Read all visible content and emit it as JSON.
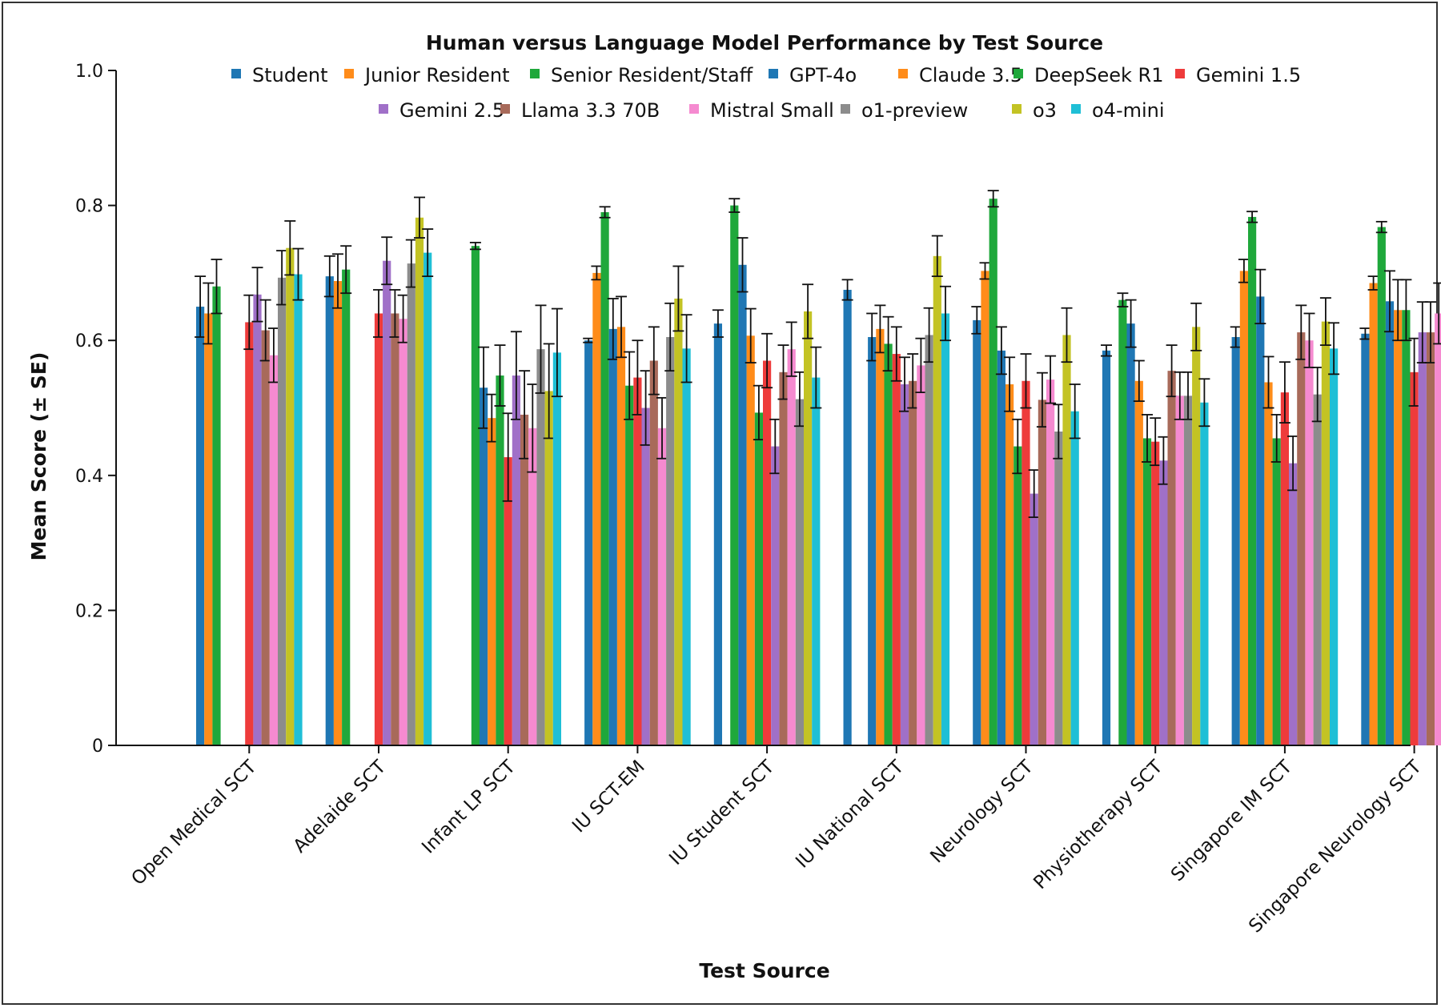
{
  "chart_data": {
    "type": "bar",
    "title": "Human versus Language Model Performance by Test Source",
    "xlabel": "Test Source",
    "ylabel": "Mean Score (± SE)",
    "ylim": [
      0,
      1.0
    ],
    "yticks": [
      0,
      0.2,
      0.4,
      0.6,
      0.8,
      1.0
    ],
    "ytick_labels": [
      "0",
      "0.2",
      "0.4",
      "0.6",
      "0.8",
      "1.0"
    ],
    "grid": false,
    "legend_position": "top",
    "categories": [
      "Open Medical SCT",
      "Adelaide SCT",
      "Infant LP SCT",
      "IU SCT-EM",
      "IU Student SCT",
      "IU National SCT",
      "Neurology SCT",
      "Physiotherapy SCT",
      "Singapore IM SCT",
      "Singapore Neurology SCT"
    ],
    "series": [
      {
        "name": "Student",
        "color": "#1f77b4",
        "values": [
          0.65,
          0.695,
          null,
          0.6,
          0.625,
          0.675,
          0.63,
          0.585,
          0.605,
          0.61
        ],
        "errors": [
          0.045,
          0.03,
          null,
          0.003,
          0.02,
          0.015,
          0.02,
          0.008,
          0.015,
          0.008
        ]
      },
      {
        "name": "Junior Resident",
        "color": "#ff8c1a",
        "values": [
          0.64,
          0.688,
          null,
          0.7,
          null,
          null,
          0.703,
          null,
          0.703,
          0.685
        ],
        "errors": [
          0.045,
          0.04,
          null,
          0.01,
          null,
          null,
          0.012,
          null,
          0.017,
          0.01
        ]
      },
      {
        "name": "Senior Resident/Staff",
        "color": "#1fa83b",
        "values": [
          0.68,
          0.705,
          0.74,
          0.79,
          0.8,
          null,
          0.81,
          0.66,
          0.783,
          0.768
        ],
        "errors": [
          0.04,
          0.035,
          0.005,
          0.008,
          0.01,
          null,
          0.012,
          0.01,
          0.008,
          0.008
        ]
      },
      {
        "name": "GPT-4o",
        "color": "#1f77b4",
        "values": [
          null,
          null,
          0.53,
          0.617,
          0.712,
          0.605,
          0.585,
          0.625,
          0.665,
          0.658
        ],
        "errors": [
          null,
          null,
          0.06,
          0.045,
          0.04,
          0.035,
          0.035,
          0.035,
          0.04,
          0.045
        ]
      },
      {
        "name": "Claude 3.5",
        "color": "#ff8c1a",
        "values": [
          null,
          null,
          0.485,
          0.62,
          0.607,
          0.617,
          0.535,
          0.54,
          0.538,
          0.645
        ],
        "errors": [
          null,
          null,
          0.035,
          0.045,
          0.04,
          0.035,
          0.04,
          0.03,
          0.038,
          0.045
        ]
      },
      {
        "name": "DeepSeek R1",
        "color": "#1fa83b",
        "values": [
          null,
          null,
          0.548,
          0.533,
          0.493,
          0.595,
          0.443,
          0.455,
          0.455,
          0.645
        ],
        "errors": [
          null,
          null,
          0.045,
          0.05,
          0.04,
          0.04,
          0.04,
          0.035,
          0.035,
          0.045
        ]
      },
      {
        "name": "Gemini 1.5",
        "color": "#ee3b3b",
        "values": [
          0.627,
          0.64,
          0.427,
          0.545,
          0.57,
          0.58,
          0.54,
          0.45,
          0.523,
          0.553
        ],
        "errors": [
          0.04,
          0.035,
          0.065,
          0.055,
          0.04,
          0.04,
          0.04,
          0.035,
          0.045,
          0.05
        ]
      },
      {
        "name": "Gemini 2.5",
        "color": "#a070c8",
        "values": [
          0.668,
          0.718,
          0.548,
          0.5,
          0.443,
          0.535,
          0.373,
          0.422,
          0.418,
          0.612
        ],
        "errors": [
          0.04,
          0.035,
          0.065,
          0.055,
          0.04,
          0.04,
          0.035,
          0.035,
          0.04,
          0.045
        ]
      },
      {
        "name": "Llama 3.3 70B",
        "color": "#a86a5a",
        "values": [
          0.615,
          0.64,
          0.49,
          0.57,
          0.553,
          0.54,
          0.512,
          0.555,
          0.612,
          0.612
        ],
        "errors": [
          0.045,
          0.035,
          0.065,
          0.05,
          0.04,
          0.04,
          0.04,
          0.038,
          0.04,
          0.045
        ]
      },
      {
        "name": "Mistral Small",
        "color": "#f58ad0",
        "values": [
          0.578,
          0.632,
          0.47,
          0.47,
          0.587,
          0.563,
          0.542,
          0.518,
          0.6,
          0.64
        ],
        "errors": [
          0.04,
          0.035,
          0.065,
          0.045,
          0.04,
          0.04,
          0.035,
          0.035,
          0.04,
          0.045
        ]
      },
      {
        "name": "o1-preview",
        "color": "#8c8c8c",
        "values": [
          0.693,
          0.714,
          0.587,
          0.605,
          0.513,
          0.608,
          0.465,
          0.518,
          0.52,
          0.602
        ],
        "errors": [
          0.04,
          0.035,
          0.065,
          0.05,
          0.04,
          0.04,
          0.04,
          0.035,
          0.04,
          0.045
        ]
      },
      {
        "name": "o3",
        "color": "#c3c324",
        "values": [
          0.737,
          0.782,
          0.525,
          0.662,
          0.643,
          0.725,
          0.608,
          0.62,
          0.628,
          0.768
        ],
        "errors": [
          0.04,
          0.03,
          0.07,
          0.048,
          0.04,
          0.03,
          0.04,
          0.035,
          0.035,
          0.04
        ]
      },
      {
        "name": "o4-mini",
        "color": "#1fbfd6",
        "values": [
          0.698,
          0.73,
          0.582,
          0.588,
          0.545,
          0.64,
          0.495,
          0.508,
          0.588,
          0.643
        ],
        "errors": [
          0.038,
          0.035,
          0.065,
          0.05,
          0.045,
          0.04,
          0.04,
          0.035,
          0.038,
          0.045
        ]
      }
    ]
  }
}
